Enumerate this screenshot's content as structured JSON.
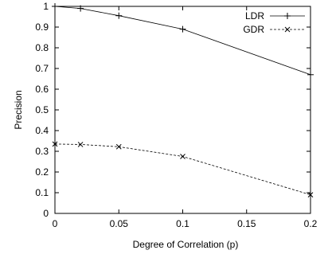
{
  "chart_data": {
    "type": "line",
    "xlabel": "Degree of Correlation (p)",
    "ylabel": "Precision",
    "xlim": [
      0,
      0.2
    ],
    "ylim": [
      0,
      1
    ],
    "x_ticks": [
      0,
      0.05,
      0.1,
      0.15,
      0.2
    ],
    "x_tick_labels": [
      "0",
      "0.05",
      "0.1",
      "0.15",
      "0.2"
    ],
    "y_ticks": [
      0,
      0.1,
      0.2,
      0.3,
      0.4,
      0.5,
      0.6,
      0.7,
      0.8,
      0.9,
      1
    ],
    "y_tick_labels": [
      "0",
      "0.1",
      "0.2",
      "0.3",
      "0.4",
      "0.5",
      "0.6",
      "0.7",
      "0.8",
      "0.9",
      "1"
    ],
    "grid": false,
    "legend_position": "top-right",
    "series": [
      {
        "name": "LDR",
        "marker": "plus",
        "line_style": "solid",
        "color": "#000000",
        "x": [
          0,
          0.02,
          0.05,
          0.1,
          0.2
        ],
        "y": [
          1.0,
          0.99,
          0.955,
          0.89,
          0.67
        ]
      },
      {
        "name": "GDR",
        "marker": "cross",
        "line_style": "dashed",
        "color": "#000000",
        "x": [
          0,
          0.02,
          0.05,
          0.1,
          0.2
        ],
        "y": [
          0.335,
          0.333,
          0.322,
          0.275,
          0.09
        ]
      }
    ]
  }
}
